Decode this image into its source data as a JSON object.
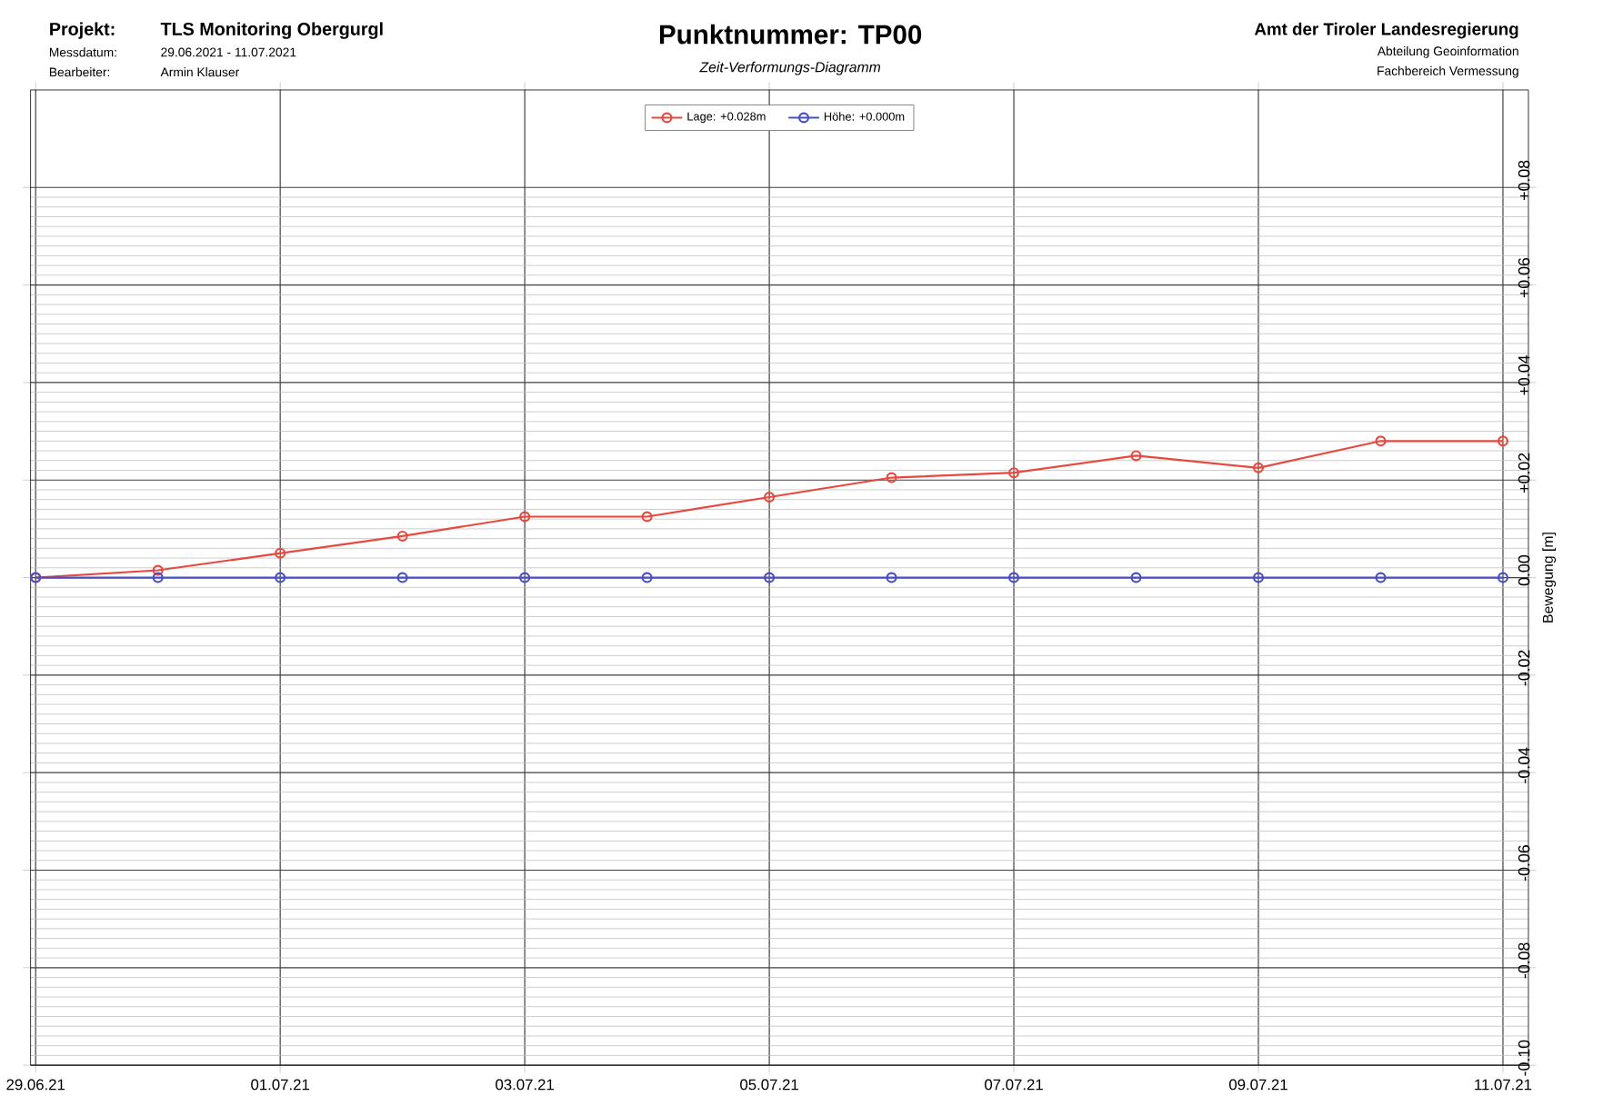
{
  "chart_data": {
    "type": "line",
    "title": "Punktnummer: TP00",
    "subtitle": "Zeit-Verformungs-Diagramm",
    "ylabel": "Bewegung [m]",
    "annotations": [
      "Projekt:",
      "TLS Monitoring Obergurgl",
      "Messdatum:",
      "29.06.2021 - 11.07.2021",
      "Bearbeiter:",
      "Armin Klauser",
      "Amt der Tiroler Landesregierung",
      "Abteilung Geoinformation",
      "Fachbereich Vermessung"
    ],
    "x": [
      "2021-06-29",
      "2021-06-30",
      "2021-07-01",
      "2021-07-02",
      "2021-07-03",
      "2021-07-04",
      "2021-07-05",
      "2021-07-06",
      "2021-07-07",
      "2021-07-08",
      "2021-07-09",
      "2021-07-10",
      "2021-07-11"
    ],
    "series": [
      {
        "name": "Lage: +0.028m",
        "color": "#e8493f",
        "values": [
          0,
          0.0015,
          0.005,
          0.0085,
          0.0125,
          0.0125,
          0.0165,
          0.0205,
          0.0215,
          0.025,
          0.0225,
          0.028,
          0.028
        ]
      },
      {
        "name": "Höhe: +0.000m",
        "color": "#4a4fc4",
        "values": [
          0,
          0,
          0,
          0,
          0,
          0,
          0,
          0,
          0,
          0,
          0,
          0,
          0
        ]
      }
    ],
    "xlim": [
      "2021-06-28T23:00",
      "2021-07-11T05:00"
    ],
    "xticks": [
      {
        "value": "2021-06-29",
        "label": "29.06.21"
      },
      {
        "value": "2021-07-01",
        "label": "01.07.21"
      },
      {
        "value": "2021-07-03",
        "label": "03.07.21"
      },
      {
        "value": "2021-07-05",
        "label": "05.07.21"
      },
      {
        "value": "2021-07-07",
        "label": "07.07.21"
      },
      {
        "value": "2021-07-09",
        "label": "09.07.21"
      },
      {
        "value": "2021-07-11",
        "label": "11.07.21"
      }
    ],
    "ylim": [
      -0.1,
      0.1
    ],
    "yticks": [
      {
        "value": -0.1,
        "label": "-0.10"
      },
      {
        "value": -0.08,
        "label": "-0.08"
      },
      {
        "value": -0.06,
        "label": "-0.06"
      },
      {
        "value": -0.04,
        "label": "-0.04"
      },
      {
        "value": -0.02,
        "label": "-0.02"
      },
      {
        "value": 0.0,
        "label": "0.00"
      },
      {
        "value": 0.02,
        "label": "+0.02"
      },
      {
        "value": 0.04,
        "label": "+0.04"
      },
      {
        "value": 0.06,
        "label": "+0.06"
      },
      {
        "value": 0.08,
        "label": "+0.08"
      }
    ],
    "grid": true,
    "legend": "top",
    "marker": "circle",
    "line_style": "solid"
  }
}
